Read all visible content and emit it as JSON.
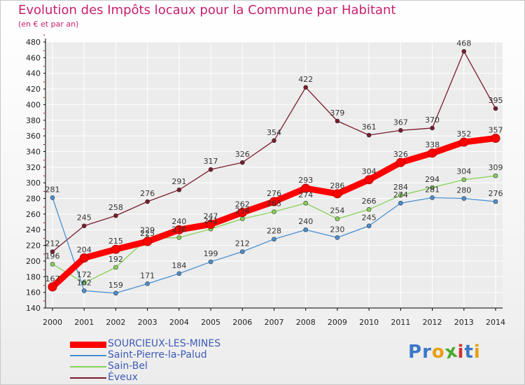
{
  "header": {
    "title": "Evolution des Impôts locaux pour la Commune par Habitant",
    "subtitle": "(en € et par an)"
  },
  "colors": {
    "title": "#c71f6e",
    "grid": "#ffffff",
    "axis": "#000000",
    "tick_marks": "#cc0000"
  },
  "chart_data": {
    "type": "line",
    "title": "Evolution des Impôts locaux pour la Commune par Habitant",
    "subtitle": "(en € et par an)",
    "xlabel": "",
    "ylabel": "",
    "ylim": [
      140,
      480
    ],
    "ytick_step": 20,
    "yticks": [
      "140",
      "160",
      "180",
      "200",
      "220",
      "240",
      "260",
      "280",
      "300",
      "320",
      "340",
      "360",
      "380",
      "400",
      "420",
      "440",
      "460",
      "480"
    ],
    "x": [
      "2000",
      "2001",
      "2002",
      "2003",
      "2004",
      "2005",
      "2006",
      "2007",
      "2008",
      "2009",
      "2010",
      "2011",
      "2012",
      "2013",
      "2014"
    ],
    "grid": true,
    "legend_position": "bottom-left",
    "series": [
      {
        "name": "SOURCIEUX-LES-MINES",
        "color": "#ff0000",
        "legend_text_color": "#3d5bb5",
        "values": [
          167,
          204,
          215,
          225,
          240,
          247,
          262,
          276,
          293,
          286,
          304,
          326,
          338,
          352,
          357
        ],
        "labels": [
          "167",
          "204",
          "215",
          "225",
          "240",
          "247",
          "262",
          "276",
          "293",
          "286",
          "304",
          "326",
          "338",
          "352",
          "357"
        ]
      },
      {
        "name": "Saint-Pierre-la-Palud",
        "color": "#4a8fd0",
        "legend_text_color": "#3d5bb5",
        "values": [
          281,
          162,
          159,
          171,
          184,
          199,
          212,
          228,
          240,
          230,
          245,
          274,
          281,
          280,
          276
        ],
        "labels": [
          "281",
          "162",
          "159",
          "171",
          "184",
          "199",
          "212",
          "228",
          "240",
          "230",
          "245",
          "274",
          "281",
          "280",
          "276"
        ]
      },
      {
        "name": "Sain-Bel",
        "color": "#86d256",
        "legend_text_color": "#3d5bb5",
        "values": [
          196,
          172,
          192,
          229,
          230,
          241,
          254,
          263,
          274,
          254,
          266,
          284,
          294,
          304,
          309
        ],
        "labels": [
          "196",
          "172",
          "192",
          "229",
          "230",
          "241",
          "254",
          "263",
          "274",
          "254",
          "266",
          "284",
          "294",
          "304",
          "309"
        ]
      },
      {
        "name": "Éveux",
        "color": "#7a1c2c",
        "legend_text_color": "#3d5bb5",
        "values": [
          212,
          245,
          258,
          276,
          291,
          317,
          326,
          354,
          422,
          379,
          361,
          367,
          370,
          468,
          395
        ],
        "labels": [
          "212",
          "245",
          "258",
          "276",
          "291",
          "317",
          "326",
          "354",
          "422",
          "379",
          "361",
          "367",
          "370",
          "468",
          "395"
        ]
      }
    ]
  },
  "logo": {
    "letters": [
      "P",
      "r",
      "o",
      "x",
      "i",
      "t",
      "i"
    ],
    "colors": [
      "#3a78c8",
      "#3a78c8",
      "#e8a010",
      "#4aaa30",
      "#d83030",
      "#3a78c8",
      "#e8a010"
    ]
  }
}
